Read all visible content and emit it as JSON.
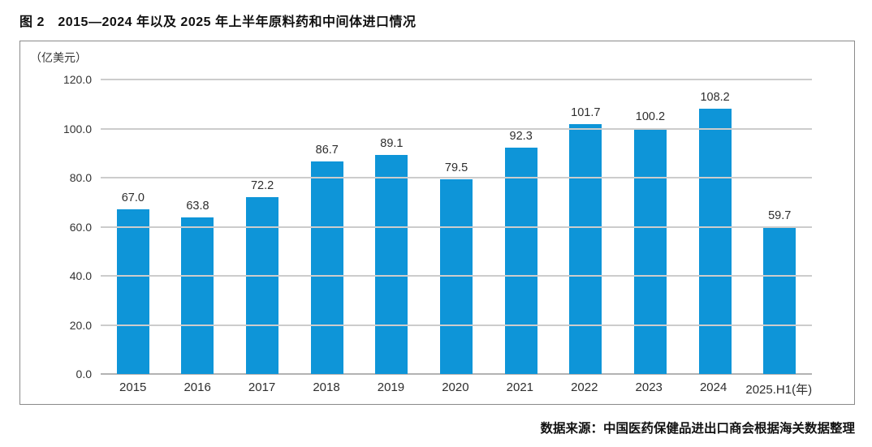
{
  "title": "图 2　2015—2024 年以及 2025 年上半年原料药和中间体进口情况",
  "source_note": "数据来源：中国医药保健品进出口商会根据海关数据整理",
  "chart_data": {
    "type": "bar",
    "title": "图 2　2015—2024 年以及 2025 年上半年原料药和中间体进口情况",
    "unit_label": "（亿美元）",
    "ylabel": "（亿美元）",
    "xlabel": "年",
    "categories": [
      "2015",
      "2016",
      "2017",
      "2018",
      "2019",
      "2020",
      "2021",
      "2022",
      "2023",
      "2024",
      "2025.H1(年)"
    ],
    "values": [
      67.0,
      63.8,
      72.2,
      86.7,
      89.1,
      79.5,
      92.3,
      101.7,
      100.2,
      108.2,
      59.7
    ],
    "value_labels": [
      "67.0",
      "63.8",
      "72.2",
      "86.7",
      "89.1",
      "79.5",
      "92.3",
      "101.7",
      "100.2",
      "108.2",
      "59.7"
    ],
    "yticks": [
      0,
      20,
      40,
      60,
      80,
      100,
      120
    ],
    "ytick_labels": [
      "0.0",
      "20.0",
      "40.0",
      "60.0",
      "80.0",
      "100.0",
      "120.0"
    ],
    "ylim": [
      0,
      120
    ],
    "grid": true,
    "legend_position": "none",
    "bar_color": "#0E95D8",
    "gridline_color": "#cccccc",
    "baseline_color": "#b3b3b3",
    "border_color": "#8a8a8a"
  }
}
